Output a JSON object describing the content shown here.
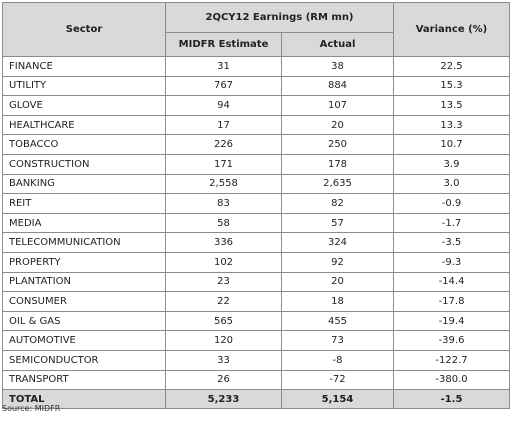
{
  "header": {
    "sector": "Sector",
    "earnings_group": "2QCY12 Earnings (RM mn)",
    "estimate": "MIDFR Estimate",
    "actual": "Actual",
    "variance": "Variance (%)"
  },
  "rows": [
    {
      "sector": "FINANCE",
      "estimate": "31",
      "actual": "38",
      "variance": "22.5"
    },
    {
      "sector": "UTILITY",
      "estimate": "767",
      "actual": "884",
      "variance": "15.3"
    },
    {
      "sector": "GLOVE",
      "estimate": "94",
      "actual": "107",
      "variance": "13.5"
    },
    {
      "sector": "HEALTHCARE",
      "estimate": "17",
      "actual": "20",
      "variance": "13.3"
    },
    {
      "sector": "TOBACCO",
      "estimate": "226",
      "actual": "250",
      "variance": "10.7"
    },
    {
      "sector": "CONSTRUCTION",
      "estimate": "171",
      "actual": "178",
      "variance": "3.9"
    },
    {
      "sector": "BANKING",
      "estimate": "2,558",
      "actual": "2,635",
      "variance": "3.0"
    },
    {
      "sector": "REIT",
      "estimate": "83",
      "actual": "82",
      "variance": "-0.9"
    },
    {
      "sector": "MEDIA",
      "estimate": "58",
      "actual": "57",
      "variance": "-1.7"
    },
    {
      "sector": "TELECOMMUNICATION",
      "estimate": "336",
      "actual": "324",
      "variance": "-3.5"
    },
    {
      "sector": "PROPERTY",
      "estimate": "102",
      "actual": "92",
      "variance": "-9.3"
    },
    {
      "sector": "PLANTATION",
      "estimate": "23",
      "actual": "20",
      "variance": "-14.4"
    },
    {
      "sector": "CONSUMER",
      "estimate": "22",
      "actual": "18",
      "variance": "-17.8"
    },
    {
      "sector": "OIL & GAS",
      "estimate": "565",
      "actual": "455",
      "variance": "-19.4"
    },
    {
      "sector": "AUTOMOTIVE",
      "estimate": "120",
      "actual": "73",
      "variance": "-39.6"
    },
    {
      "sector": "SEMICONDUCTOR",
      "estimate": "33",
      "actual": "-8",
      "variance": "-122.7"
    },
    {
      "sector": "TRANSPORT",
      "estimate": "26",
      "actual": "-72",
      "variance": "-380.0"
    }
  ],
  "total": {
    "sector": "TOTAL",
    "estimate": "5,233",
    "actual": "5,154",
    "variance": "-1.5"
  },
  "source": "Source: MIDFR"
}
